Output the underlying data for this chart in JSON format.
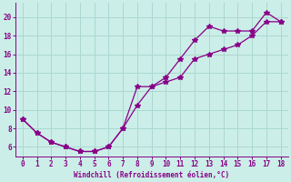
{
  "line1_x": [
    0,
    1,
    2,
    3,
    4,
    5,
    6,
    7,
    8,
    9,
    10,
    11,
    12,
    13,
    14,
    15,
    16,
    17,
    18
  ],
  "line1_y": [
    9,
    7.5,
    6.5,
    6.0,
    5.5,
    5.5,
    6.0,
    8.0,
    10.5,
    12.5,
    13.5,
    15.5,
    17.5,
    19.0,
    18.5,
    18.5,
    18.5,
    20.5,
    19.5
  ],
  "line2_x": [
    0,
    1,
    2,
    3,
    4,
    5,
    6,
    7,
    8,
    9,
    10,
    11,
    12,
    13,
    14,
    15,
    16,
    17,
    18
  ],
  "line2_y": [
    9,
    7.5,
    6.5,
    6.0,
    5.5,
    5.5,
    6.0,
    8.0,
    12.5,
    12.5,
    13.0,
    13.5,
    15.5,
    16.0,
    16.5,
    17.0,
    18.0,
    19.5,
    19.5
  ],
  "line_color": "#880088",
  "bg_color": "#cceee8",
  "grid_color": "#aad8d0",
  "xlabel": "Windchill (Refroidissement éolien,°C)",
  "xlabel_color": "#880088",
  "tick_color": "#880088",
  "xlim_min": -0.5,
  "xlim_max": 18.5,
  "ylim_min": 5.0,
  "ylim_max": 21.5,
  "yticks": [
    6,
    8,
    10,
    12,
    14,
    16,
    18,
    20
  ],
  "xticks": [
    0,
    1,
    2,
    3,
    4,
    5,
    6,
    7,
    8,
    9,
    10,
    11,
    12,
    13,
    14,
    15,
    16,
    17,
    18
  ],
  "marker": "*",
  "markersize": 4,
  "linewidth": 0.9,
  "tick_labelsize": 5.5,
  "xlabel_fontsize": 5.5
}
